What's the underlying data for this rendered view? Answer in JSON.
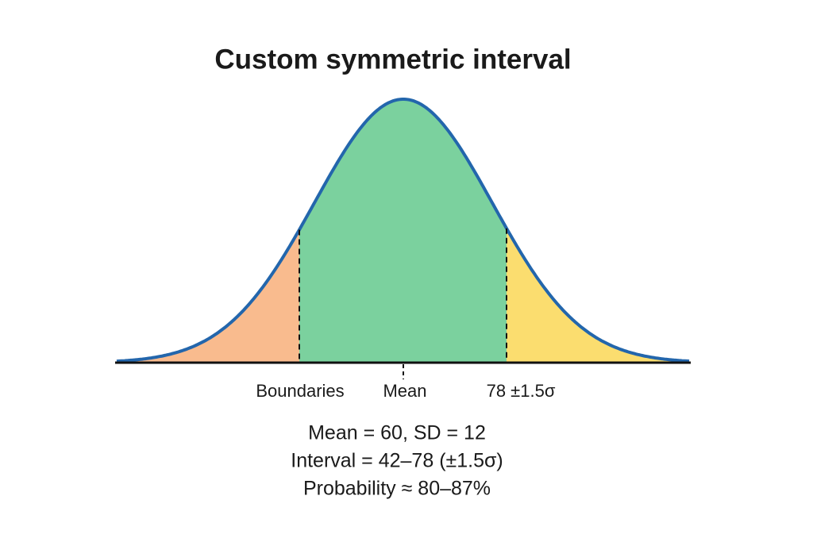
{
  "title": "Custom symmetric interval",
  "axis_labels": [
    "Boundaries",
    "Mean",
    "78 ±1.5σ"
  ],
  "notes": [
    "Mean = 60, SD = 12",
    "Interval = 42–78 (±1.5σ)",
    "Probability ≈ 80–87%"
  ]
}
